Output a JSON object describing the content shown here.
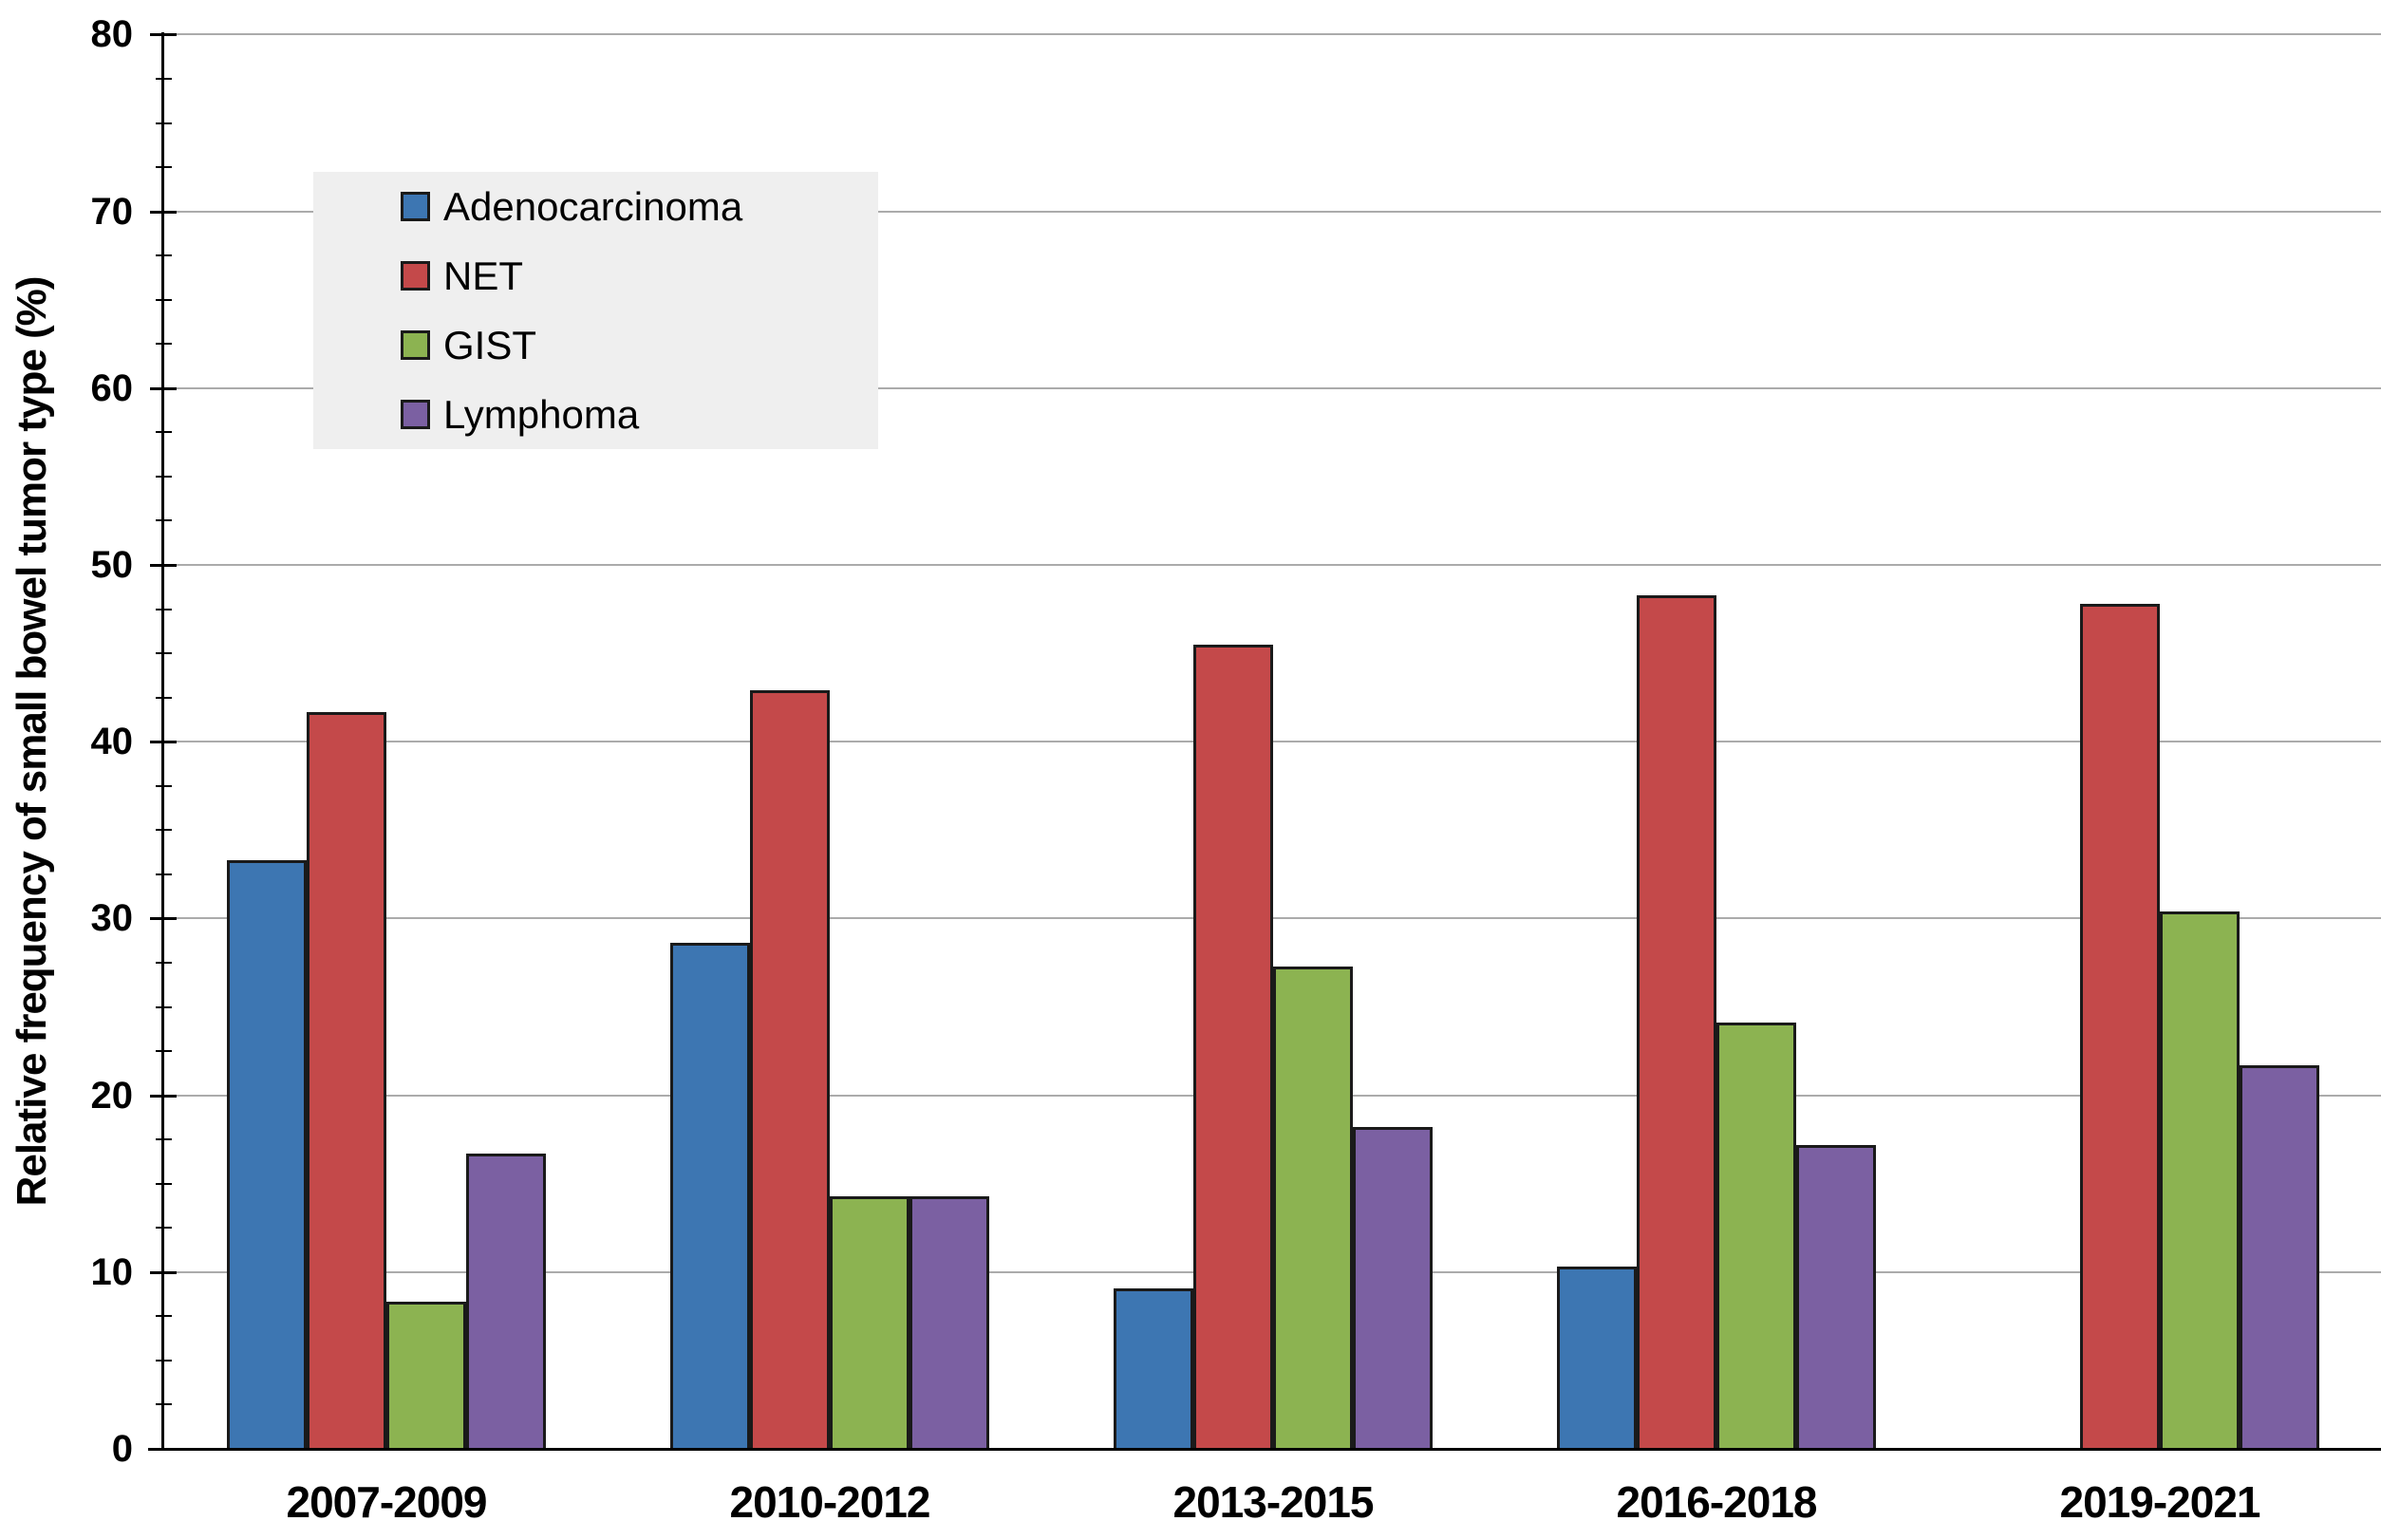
{
  "chart_data": {
    "type": "bar",
    "title": "",
    "xlabel": "",
    "ylabel": "Relative frequency of small bowel tumor type (%)",
    "categories": [
      "2007-2009",
      "2010-2012",
      "2013-2015",
      "2016-2018",
      "2019-2021"
    ],
    "series": [
      {
        "name": "Adenocarcinoma",
        "color": "#3d76b2",
        "values": [
          33.3,
          28.6,
          9.1,
          10.3,
          0
        ]
      },
      {
        "name": "NET",
        "color": "#c4494a",
        "values": [
          41.7,
          42.9,
          45.5,
          48.3,
          47.8
        ]
      },
      {
        "name": "GIST",
        "color": "#8cb351",
        "values": [
          8.3,
          14.3,
          27.3,
          24.1,
          30.4
        ]
      },
      {
        "name": "Lymphoma",
        "color": "#7b60a2",
        "values": [
          16.7,
          14.3,
          18.2,
          17.2,
          21.7
        ]
      }
    ],
    "ylim": [
      0,
      80
    ],
    "ytick_labels": [
      "0",
      "10",
      "20",
      "30",
      "40",
      "50",
      "60",
      "70",
      "80"
    ],
    "ytick_interval": 10,
    "minor_tick_interval": 2.5,
    "grid": true,
    "legend_position": "upper-left-inside",
    "colors": {
      "gridline": "#ababab",
      "axis": "#000000",
      "bar_outline": "#1a1a1a",
      "legend_background": "#efefef",
      "text": "#000000",
      "background": "#ffffff"
    }
  }
}
